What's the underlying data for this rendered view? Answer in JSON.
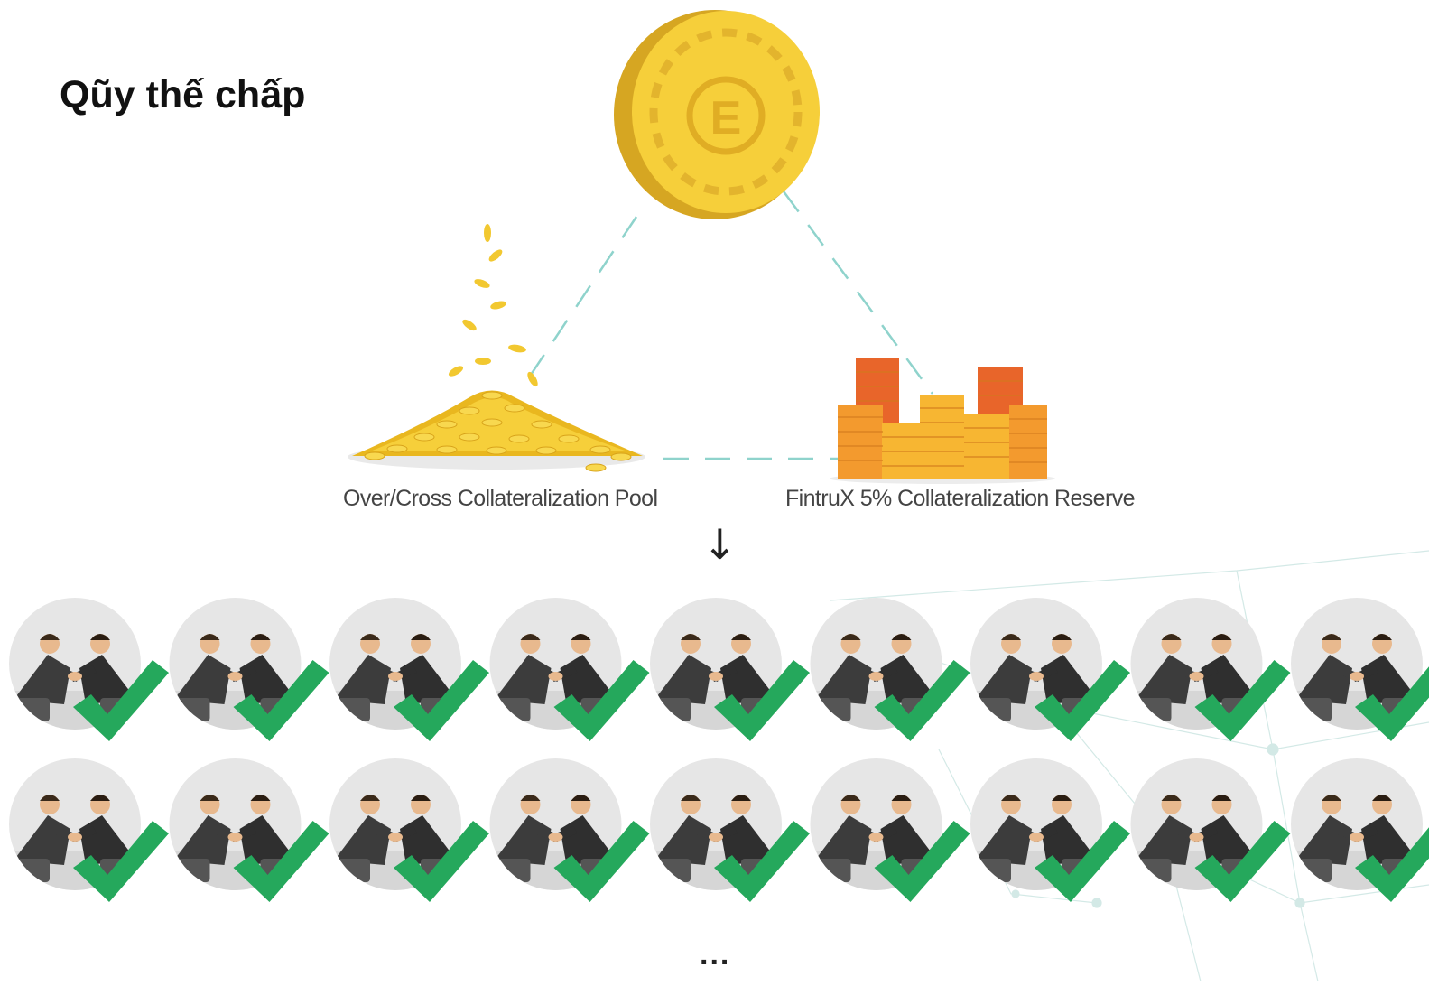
{
  "title": "Qũy thế chấp",
  "nodes": {
    "coin": {
      "symbol": "E",
      "color": "#f6cf3a"
    },
    "pool": {
      "label": "Over/Cross Collateralization Pool"
    },
    "reserve": {
      "label": "FintruX 5% Collateralization Reserve"
    }
  },
  "arrow_glyph": "↓",
  "ellipsis": "...",
  "borrowers": {
    "rows": 2,
    "per_row": 9,
    "status": "approved"
  },
  "colors": {
    "connector": "#8fd3cc",
    "gold": "#f6cf3a",
    "orange": "#f39a2e",
    "check": "#25a85c"
  }
}
